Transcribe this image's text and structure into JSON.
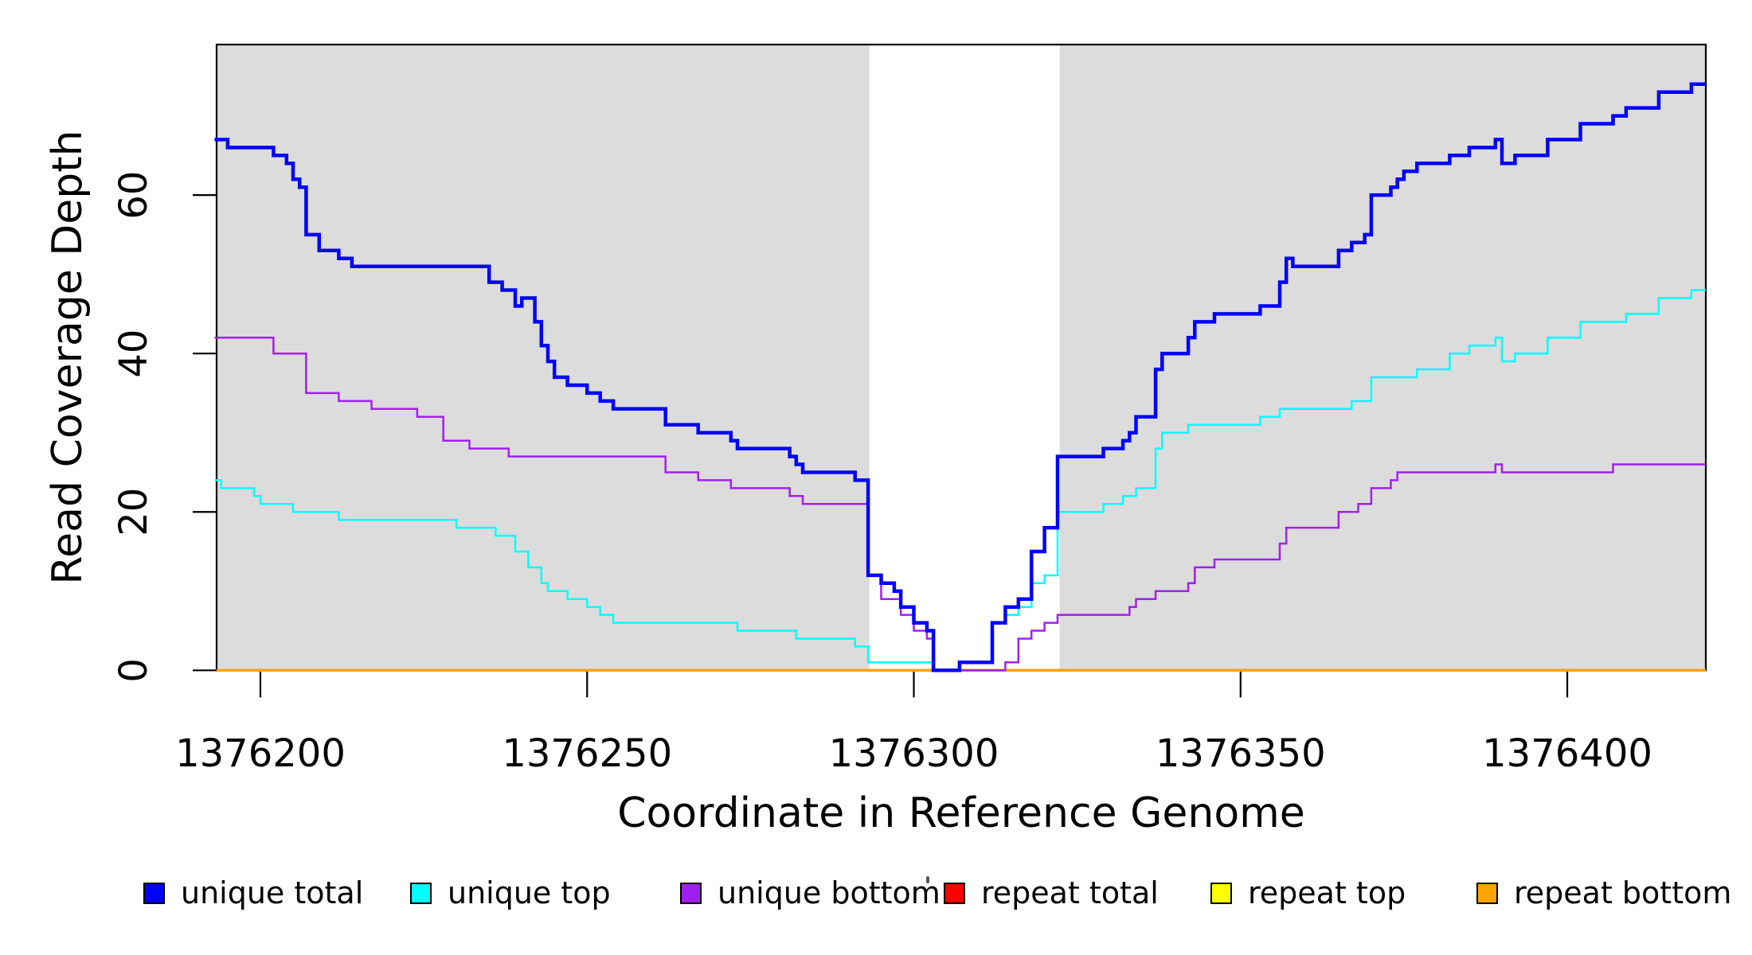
{
  "chart_data": {
    "type": "line",
    "subtype": "step-after",
    "title": "",
    "xlabel": "Coordinate in Reference Genome",
    "ylabel": "Read Coverage Depth",
    "xlim": [
      1376193.3,
      1376421.2
    ],
    "ylim": [
      0,
      79
    ],
    "grid": false,
    "legend_position": "bottom",
    "x_ticks": [
      1376200,
      1376250,
      1376300,
      1376350,
      1376400
    ],
    "y_ticks": [
      0,
      20,
      40,
      60
    ],
    "background_color": "#ffffff",
    "shaded_bands": [
      {
        "x0": 1376193.3,
        "x1": 1376293.2,
        "color": "#DCDCDC"
      },
      {
        "x0": 1376322.3,
        "x1": 1376421.2,
        "color": "#DCDCDC"
      }
    ],
    "series": [
      {
        "name": "repeat total",
        "color": "#FF0000",
        "width": 3.5,
        "points": [
          [
            1376193.3,
            0
          ]
        ]
      },
      {
        "name": "repeat top",
        "color": "#FFFF00",
        "width": 3.5,
        "points": [
          [
            1376193.3,
            0
          ]
        ]
      },
      {
        "name": "repeat bottom",
        "color": "#FFA500",
        "width": 3.5,
        "points": [
          [
            1376193.3,
            0
          ]
        ]
      },
      {
        "name": "unique bottom",
        "color": "#A020F0",
        "width": 2.5,
        "points": [
          [
            1376193,
            42
          ],
          [
            1376202,
            40
          ],
          [
            1376207,
            35
          ],
          [
            1376212,
            34
          ],
          [
            1376217,
            33
          ],
          [
            1376224,
            32
          ],
          [
            1376228,
            29
          ],
          [
            1376232,
            28
          ],
          [
            1376238,
            27
          ],
          [
            1376262,
            25
          ],
          [
            1376267,
            24
          ],
          [
            1376272,
            23
          ],
          [
            1376281,
            22
          ],
          [
            1376283,
            21
          ],
          [
            1376293,
            12
          ],
          [
            1376295,
            9
          ],
          [
            1376298,
            7
          ],
          [
            1376300,
            5
          ],
          [
            1376302,
            4
          ],
          [
            1376303,
            0
          ],
          [
            1376314,
            1
          ],
          [
            1376316,
            4
          ],
          [
            1376318,
            5
          ],
          [
            1376320,
            6
          ],
          [
            1376322,
            7
          ],
          [
            1376333,
            8
          ],
          [
            1376334,
            9
          ],
          [
            1376337,
            10
          ],
          [
            1376342,
            11
          ],
          [
            1376343,
            13
          ],
          [
            1376346,
            14
          ],
          [
            1376356,
            16
          ],
          [
            1376357,
            18
          ],
          [
            1376365,
            20
          ],
          [
            1376368,
            21
          ],
          [
            1376370,
            23
          ],
          [
            1376373,
            24
          ],
          [
            1376374,
            25
          ],
          [
            1376389,
            26
          ],
          [
            1376390,
            25
          ],
          [
            1376407,
            26
          ]
        ]
      },
      {
        "name": "unique top",
        "color": "#00FFFF",
        "width": 2.5,
        "points": [
          [
            1376193,
            24
          ],
          [
            1376194,
            23
          ],
          [
            1376199,
            22
          ],
          [
            1376200,
            21
          ],
          [
            1376205,
            20
          ],
          [
            1376212,
            19
          ],
          [
            1376230,
            18
          ],
          [
            1376236,
            17
          ],
          [
            1376239,
            15
          ],
          [
            1376241,
            13
          ],
          [
            1376243,
            11
          ],
          [
            1376244,
            10
          ],
          [
            1376247,
            9
          ],
          [
            1376250,
            8
          ],
          [
            1376252,
            7
          ],
          [
            1376254,
            6
          ],
          [
            1376273,
            5
          ],
          [
            1376282,
            4
          ],
          [
            1376291,
            3
          ],
          [
            1376293,
            1
          ],
          [
            1376303,
            0
          ],
          [
            1376307,
            1
          ],
          [
            1376312,
            6
          ],
          [
            1376314,
            7
          ],
          [
            1376316,
            8
          ],
          [
            1376318,
            11
          ],
          [
            1376320,
            12
          ],
          [
            1376322,
            20
          ],
          [
            1376329,
            21
          ],
          [
            1376332,
            22
          ],
          [
            1376334,
            23
          ],
          [
            1376337,
            28
          ],
          [
            1376338,
            30
          ],
          [
            1376342,
            31
          ],
          [
            1376353,
            32
          ],
          [
            1376356,
            33
          ],
          [
            1376367,
            34
          ],
          [
            1376370,
            37
          ],
          [
            1376377,
            38
          ],
          [
            1376382,
            40
          ],
          [
            1376385,
            41
          ],
          [
            1376389,
            42
          ],
          [
            1376390,
            39
          ],
          [
            1376392,
            40
          ],
          [
            1376397,
            42
          ],
          [
            1376402,
            44
          ],
          [
            1376409,
            45
          ],
          [
            1376414,
            47
          ],
          [
            1376419,
            48
          ]
        ]
      },
      {
        "name": "unique total",
        "color": "#0000FF",
        "width": 4.5,
        "points": [
          [
            1376193,
            67
          ],
          [
            1376195,
            66
          ],
          [
            1376202,
            65
          ],
          [
            1376204,
            64
          ],
          [
            1376205,
            62
          ],
          [
            1376206,
            61
          ],
          [
            1376207,
            55
          ],
          [
            1376209,
            53
          ],
          [
            1376212,
            52
          ],
          [
            1376214,
            51
          ],
          [
            1376235,
            49
          ],
          [
            1376237,
            48
          ],
          [
            1376239,
            46
          ],
          [
            1376240,
            47
          ],
          [
            1376242,
            44
          ],
          [
            1376243,
            41
          ],
          [
            1376244,
            39
          ],
          [
            1376245,
            37
          ],
          [
            1376247,
            36
          ],
          [
            1376250,
            35
          ],
          [
            1376252,
            34
          ],
          [
            1376254,
            33
          ],
          [
            1376262,
            31
          ],
          [
            1376267,
            30
          ],
          [
            1376272,
            29
          ],
          [
            1376273,
            28
          ],
          [
            1376281,
            27
          ],
          [
            1376282,
            26
          ],
          [
            1376283,
            25
          ],
          [
            1376291,
            24
          ],
          [
            1376293,
            12
          ],
          [
            1376295,
            11
          ],
          [
            1376297,
            10
          ],
          [
            1376298,
            8
          ],
          [
            1376300,
            6
          ],
          [
            1376302,
            5
          ],
          [
            1376303,
            0
          ],
          [
            1376307,
            1
          ],
          [
            1376312,
            6
          ],
          [
            1376314,
            8
          ],
          [
            1376316,
            9
          ],
          [
            1376318,
            15
          ],
          [
            1376320,
            18
          ],
          [
            1376322,
            27
          ],
          [
            1376329,
            28
          ],
          [
            1376332,
            29
          ],
          [
            1376333,
            30
          ],
          [
            1376334,
            32
          ],
          [
            1376337,
            38
          ],
          [
            1376338,
            40
          ],
          [
            1376342,
            42
          ],
          [
            1376343,
            44
          ],
          [
            1376346,
            45
          ],
          [
            1376353,
            46
          ],
          [
            1376356,
            49
          ],
          [
            1376357,
            52
          ],
          [
            1376358,
            51
          ],
          [
            1376365,
            53
          ],
          [
            1376367,
            54
          ],
          [
            1376369,
            55
          ],
          [
            1376370,
            60
          ],
          [
            1376373,
            61
          ],
          [
            1376374,
            62
          ],
          [
            1376375,
            63
          ],
          [
            1376377,
            64
          ],
          [
            1376382,
            65
          ],
          [
            1376385,
            66
          ],
          [
            1376389,
            67
          ],
          [
            1376390,
            64
          ],
          [
            1376392,
            65
          ],
          [
            1376397,
            67
          ],
          [
            1376402,
            69
          ],
          [
            1376407,
            70
          ],
          [
            1376409,
            71
          ],
          [
            1376414,
            73
          ],
          [
            1376419,
            74
          ]
        ]
      }
    ],
    "legend": [
      {
        "label": "unique total",
        "color": "#0000FF"
      },
      {
        "label": "unique top",
        "color": "#00FFFF"
      },
      {
        "label": "unique bottom",
        "color": "#A020F0"
      },
      {
        "label": "repeat total",
        "color": "#FF0000"
      },
      {
        "label": "repeat top",
        "color": "#FFFF00"
      },
      {
        "label": "repeat bottom",
        "color": "#FFA500"
      }
    ]
  }
}
